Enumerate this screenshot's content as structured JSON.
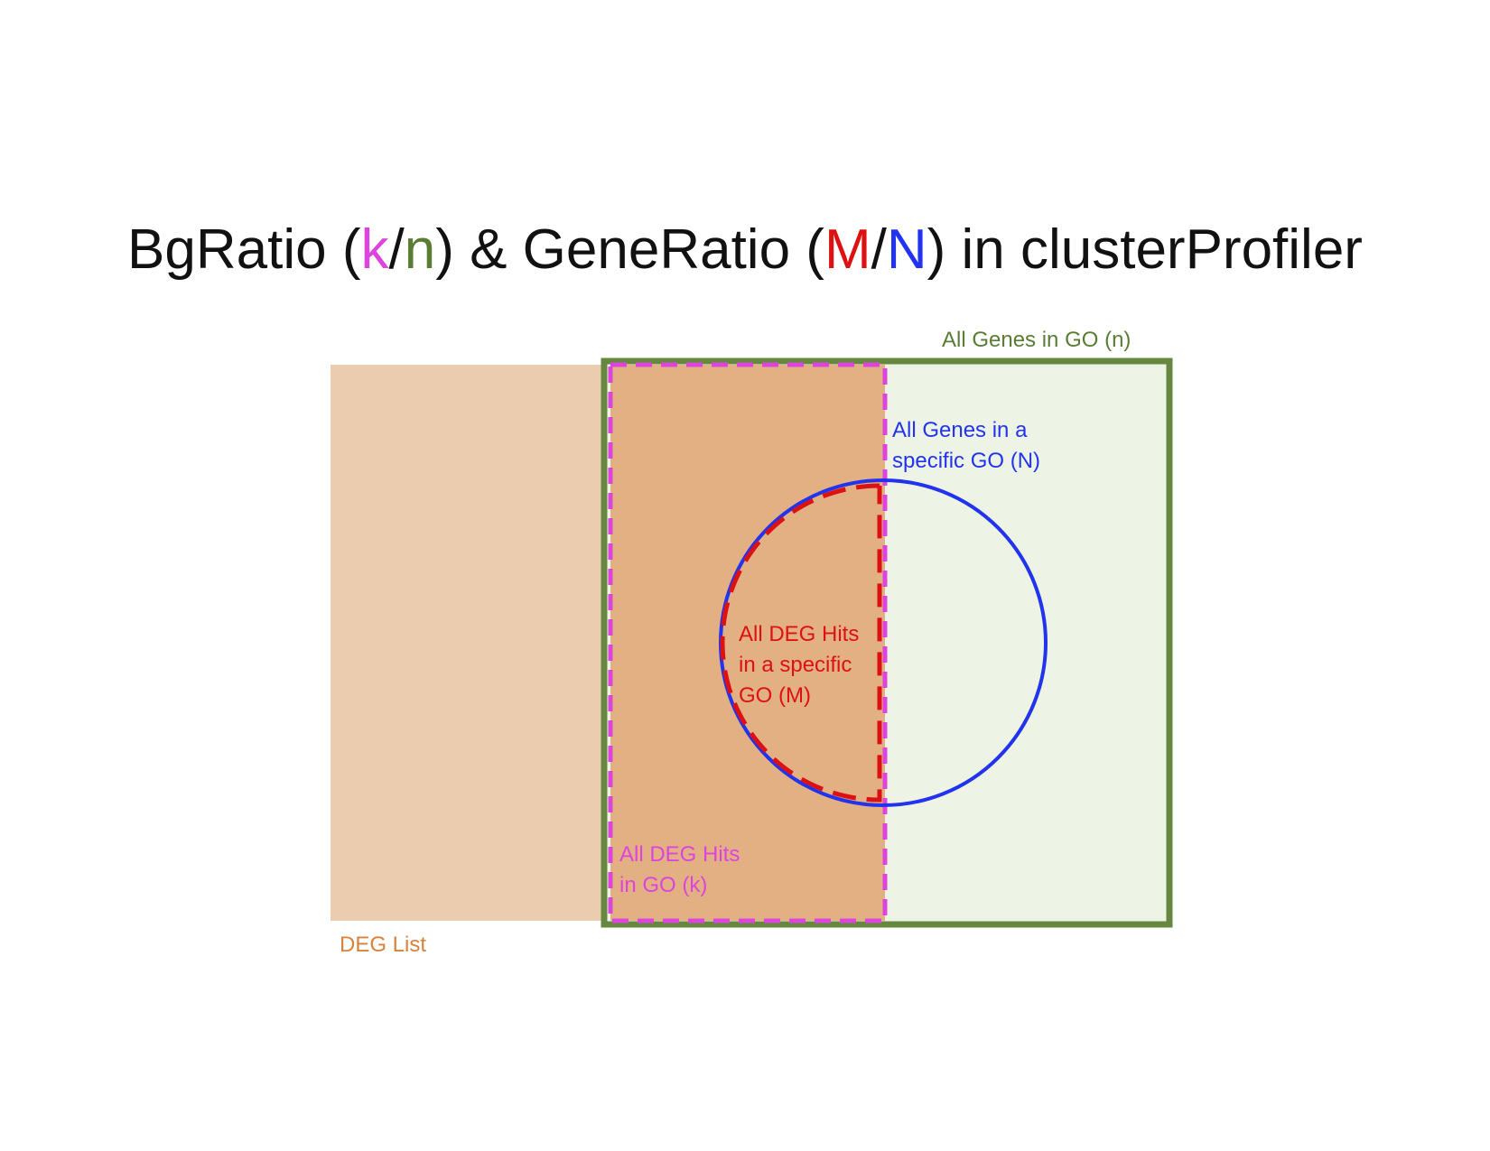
{
  "title": {
    "part1": "BgRatio (",
    "k": "k",
    "slash1": "/",
    "n": "n",
    "part2": ") & GeneRatio (",
    "M": "M",
    "slash2": "/",
    "N": "N",
    "part3": ") in clusterProfiler"
  },
  "labels": {
    "all_genes_in_go": "All Genes in GO (n)",
    "specific_go_line1": "All Genes in a",
    "specific_go_line2": "specific GO (N)",
    "deg_hits_specific_line1": "All DEG Hits",
    "deg_hits_specific_line2": "in a specific",
    "deg_hits_specific_line3": "GO (M)",
    "deg_hits_go_line1": "All DEG Hits",
    "deg_hits_go_line2": "in GO (k)",
    "deg_list": "DEG List"
  },
  "colors": {
    "title_text": "#111111",
    "k": "#dd44dd",
    "n": "#5a7d34",
    "M": "#dd1111",
    "N": "#2233ee",
    "deg_list_fill": "#ecccae",
    "deg_hits_fill": "#e3b084",
    "go_fill": "#eef4e5",
    "go_border": "#658740",
    "deg_list_label": "#d9823c"
  }
}
